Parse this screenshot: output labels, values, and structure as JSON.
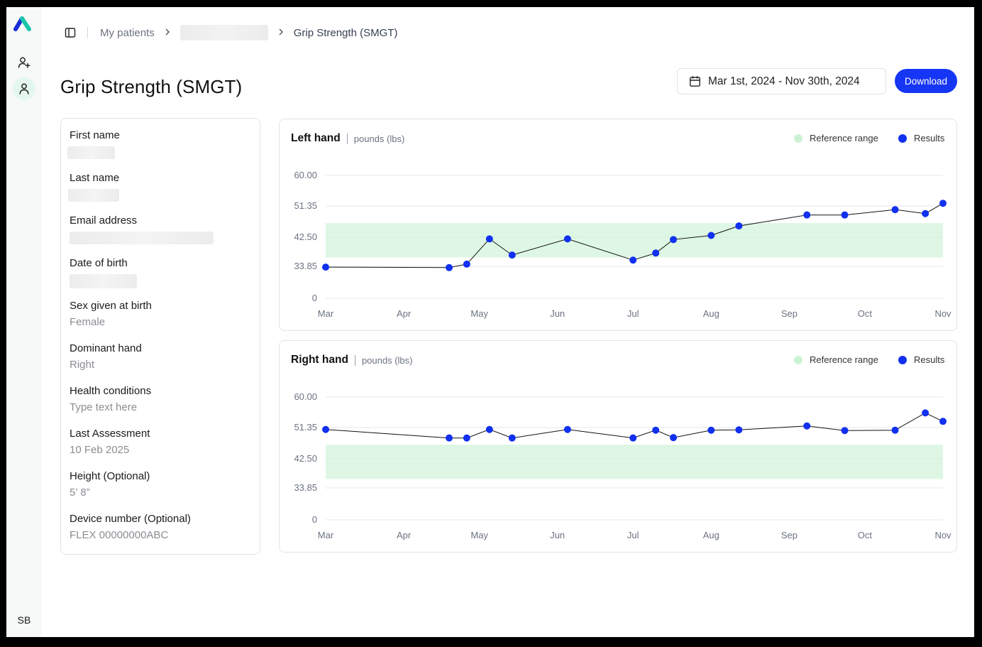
{
  "app": {
    "rail": {
      "avatar_initials": "SB",
      "accent_color": "#19c7a8"
    }
  },
  "breadcrumb": {
    "items": [
      "My patients",
      "Grip Strength (SMGT)"
    ]
  },
  "header": {
    "title": "Grip Strength (SMGT)",
    "date_range": "Mar 1st, 2024 - Nov 30th, 2024",
    "download_label": "Download"
  },
  "patient": {
    "fields": [
      {
        "label": "First name",
        "value": null
      },
      {
        "label": "Last name",
        "value": null
      },
      {
        "label": "Email address",
        "value": null
      },
      {
        "label": "Date of birth",
        "value": null
      },
      {
        "label": "Sex given at birth",
        "value": "Female"
      },
      {
        "label": "Dominant hand",
        "value": "Right"
      },
      {
        "label": "Health conditions",
        "value": "Type text here"
      },
      {
        "label": "Last Assessment",
        "value": "10 Feb 2025"
      },
      {
        "label": "Height (Optional)",
        "value": "5’ 8”"
      },
      {
        "label": "Device number (Optional)",
        "value": "FLEX 00000000ABC"
      }
    ]
  },
  "colors": {
    "results": "#1130f0",
    "reference_range": "#ccf2d6",
    "primary_button": "#1636f5"
  },
  "chart_data": [
    {
      "type": "line",
      "title": "Left hand",
      "unit": "pounds (lbs)",
      "legend": [
        "Reference range",
        "Results"
      ],
      "legend_position": "top-right",
      "y_ticks": [
        "60.00",
        "51.35",
        "42.50",
        "33.85",
        "0"
      ],
      "x_ticks": [
        "Mar",
        "Apr",
        "May",
        "Jun",
        "Jul",
        "Aug",
        "Sep",
        "Oct",
        "Nov"
      ],
      "reference_range": [
        36.5,
        46.5
      ],
      "grid": true,
      "series": [
        {
          "name": "Results",
          "x": [
            "2024-03-01",
            "2024-04-19",
            "2024-04-26",
            "2024-05-05",
            "2024-05-14",
            "2024-06-05",
            "2024-07-01",
            "2024-07-10",
            "2024-07-17",
            "2024-08-01",
            "2024-08-12",
            "2024-09-08",
            "2024-09-23",
            "2024-10-13",
            "2024-10-25",
            "2024-11-01"
          ],
          "values": [
            33.0,
            32.5,
            34.5,
            42.0,
            37.2,
            42.0,
            35.7,
            37.8,
            41.8,
            43.0,
            45.7,
            48.8,
            48.8,
            50.3,
            49.2,
            52.1
          ]
        }
      ]
    },
    {
      "type": "line",
      "title": "Right hand",
      "unit": "pounds (lbs)",
      "legend": [
        "Reference range",
        "Results"
      ],
      "legend_position": "top-right",
      "y_ticks": [
        "60.00",
        "51.35",
        "42.50",
        "33.85",
        "0"
      ],
      "x_ticks": [
        "Mar",
        "Apr",
        "May",
        "Jun",
        "Jul",
        "Aug",
        "Sep",
        "Oct",
        "Nov"
      ],
      "reference_range": [
        36.5,
        46.5
      ],
      "grid": true,
      "series": [
        {
          "name": "Results",
          "x": [
            "2024-03-01",
            "2024-04-19",
            "2024-04-26",
            "2024-05-05",
            "2024-05-14",
            "2024-06-05",
            "2024-07-01",
            "2024-07-10",
            "2024-07-17",
            "2024-08-01",
            "2024-08-12",
            "2024-09-08",
            "2024-09-23",
            "2024-10-13",
            "2024-10-25",
            "2024-11-01"
          ],
          "values": [
            50.8,
            48.4,
            48.4,
            50.8,
            48.4,
            50.8,
            48.4,
            50.6,
            48.5,
            50.6,
            50.7,
            51.8,
            50.5,
            50.6,
            55.5,
            53.1
          ]
        }
      ]
    }
  ]
}
